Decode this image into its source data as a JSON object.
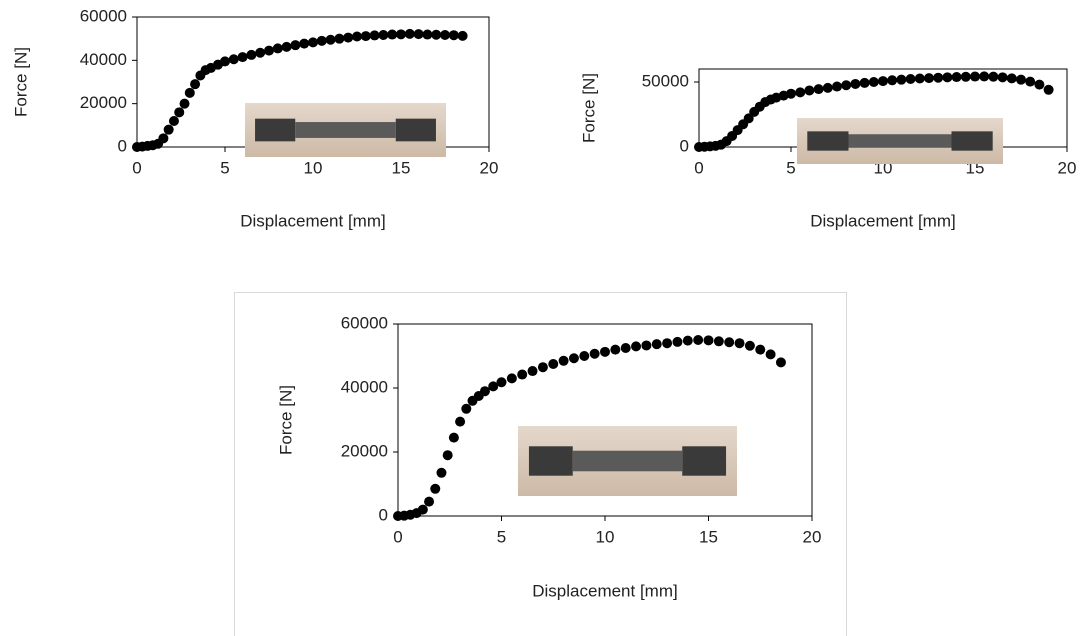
{
  "chart_data": [
    {
      "type": "scatter",
      "xlabel": "Displacement [mm]",
      "ylabel": "Force [N]",
      "color": "#000000",
      "xlim": [
        0,
        20
      ],
      "ylim": [
        0,
        60000
      ],
      "xticks": [
        0,
        5,
        10,
        15,
        20
      ],
      "yticks": [
        0,
        20000,
        40000,
        60000
      ],
      "x": [
        0,
        0.3,
        0.6,
        0.9,
        1.2,
        1.5,
        1.8,
        2.1,
        2.4,
        2.7,
        3.0,
        3.3,
        3.6,
        3.9,
        4.2,
        4.6,
        5.0,
        5.5,
        6.0,
        6.5,
        7.0,
        7.5,
        8.0,
        8.5,
        9.0,
        9.5,
        10,
        10.5,
        11,
        11.5,
        12,
        12.5,
        13,
        13.5,
        14,
        14.5,
        15,
        15.5,
        16,
        16.5,
        17,
        17.5,
        18,
        18.5
      ],
      "values": [
        0,
        200,
        500,
        800,
        1500,
        4000,
        8000,
        12000,
        16000,
        20000,
        25000,
        29000,
        33000,
        35500,
        36500,
        38000,
        39500,
        40500,
        41500,
        42500,
        43500,
        44500,
        45500,
        46200,
        47000,
        47700,
        48300,
        49000,
        49500,
        50000,
        50500,
        51000,
        51200,
        51500,
        51700,
        51900,
        52000,
        52200,
        52100,
        51900,
        51800,
        51700,
        51600,
        51300
      ]
    },
    {
      "type": "scatter",
      "xlabel": "Displacement [mm]",
      "ylabel": "Force [N]",
      "color": "#000000",
      "xlim": [
        0,
        20
      ],
      "ylim": [
        0,
        60000
      ],
      "xticks": [
        0,
        5,
        10,
        15,
        20
      ],
      "yticks": [
        0,
        50000
      ],
      "x": [
        0,
        0.3,
        0.6,
        0.9,
        1.2,
        1.5,
        1.8,
        2.1,
        2.4,
        2.7,
        3.0,
        3.3,
        3.6,
        3.9,
        4.2,
        4.6,
        5.0,
        5.5,
        6.0,
        6.5,
        7.0,
        7.5,
        8.0,
        8.5,
        9.0,
        9.5,
        10,
        10.5,
        11,
        11.5,
        12,
        12.5,
        13,
        13.5,
        14,
        14.5,
        15,
        15.5,
        16,
        16.5,
        17,
        17.5,
        18,
        18.5,
        19
      ],
      "values": [
        0,
        200,
        500,
        900,
        1800,
        4500,
        8500,
        13000,
        17500,
        22000,
        27000,
        31000,
        34500,
        36500,
        38000,
        39500,
        41000,
        42000,
        43500,
        44500,
        45500,
        46500,
        47500,
        48500,
        49300,
        50000,
        50700,
        51300,
        51800,
        52300,
        52700,
        53000,
        53300,
        53600,
        53800,
        54000,
        54200,
        54300,
        54100,
        53600,
        52800,
        51800,
        50300,
        48000,
        44000
      ]
    },
    {
      "type": "scatter",
      "xlabel": "Displacement [mm]",
      "ylabel": "Force [N]",
      "color": "#000000",
      "xlim": [
        0,
        20
      ],
      "ylim": [
        0,
        60000
      ],
      "xticks": [
        0,
        5,
        10,
        15,
        20
      ],
      "yticks": [
        0,
        20000,
        40000,
        60000
      ],
      "x": [
        0,
        0.3,
        0.6,
        0.9,
        1.2,
        1.5,
        1.8,
        2.1,
        2.4,
        2.7,
        3.0,
        3.3,
        3.6,
        3.9,
        4.2,
        4.6,
        5.0,
        5.5,
        6.0,
        6.5,
        7.0,
        7.5,
        8.0,
        8.5,
        9.0,
        9.5,
        10,
        10.5,
        11,
        11.5,
        12,
        12.5,
        13,
        13.5,
        14,
        14.5,
        15,
        15.5,
        16,
        16.5,
        17,
        17.5,
        18,
        18.5
      ],
      "values": [
        0,
        100,
        400,
        900,
        2000,
        4500,
        8500,
        13500,
        19000,
        24500,
        29500,
        33500,
        36000,
        37500,
        39000,
        40500,
        41800,
        43000,
        44200,
        45300,
        46500,
        47500,
        48500,
        49300,
        50000,
        50700,
        51300,
        52000,
        52500,
        53000,
        53300,
        53700,
        54000,
        54400,
        54800,
        55000,
        54900,
        54600,
        54300,
        54000,
        53200,
        52000,
        50500,
        48000
      ]
    }
  ]
}
